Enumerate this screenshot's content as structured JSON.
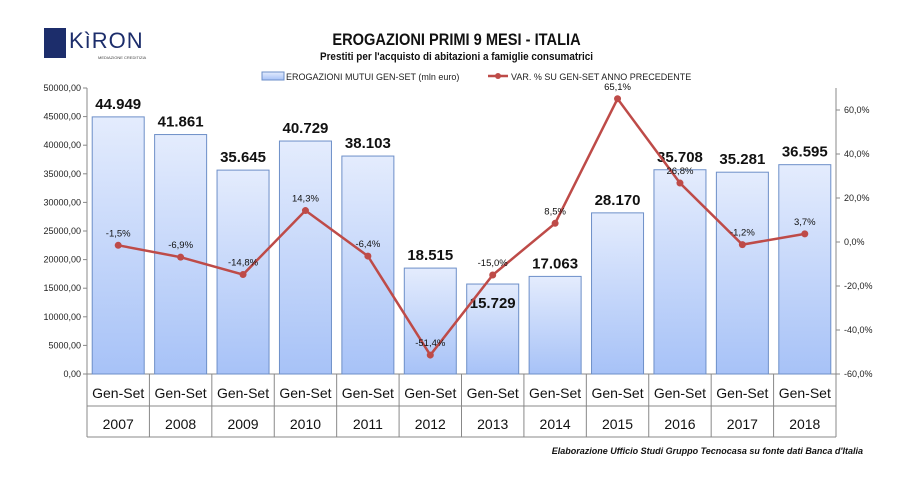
{
  "logo": {
    "text": "KìRON",
    "sub": "MEDIAZIONE CREDITIZIA"
  },
  "chart_data": {
    "type": "bar+line",
    "title": "EROGAZIONI PRIMI 9 MESI - ITALIA",
    "subtitle": "Prestiti per l'acquisto di abitazioni a famiglie consumatrici",
    "categories": [
      "2007",
      "2008",
      "2009",
      "2010",
      "2011",
      "2012",
      "2013",
      "2014",
      "2015",
      "2016",
      "2017",
      "2018"
    ],
    "category_prefix": "Gen-Set",
    "series": [
      {
        "name": "EROGAZIONI MUTUI GEN-SET (mln euro)",
        "type": "bar",
        "axis": "left",
        "color": "#a9c4f5",
        "values": [
          44949,
          41861,
          35645,
          40729,
          38103,
          18515,
          15729,
          17063,
          28170,
          35708,
          35281,
          36595
        ],
        "labels": [
          "44.949",
          "41.861",
          "35.645",
          "40.729",
          "38.103",
          "18.515",
          "15.729",
          "17.063",
          "28.170",
          "35.708",
          "35.281",
          "36.595"
        ]
      },
      {
        "name": "VAR. % SU GEN-SET ANNO PRECEDENTE",
        "type": "line",
        "axis": "right",
        "color": "#be4b48",
        "values": [
          -1.5,
          -6.9,
          -14.8,
          14.3,
          -6.4,
          -51.4,
          -15.0,
          8.5,
          65.1,
          26.8,
          -1.2,
          3.7
        ],
        "labels": [
          "-1,5%",
          "-6,9%",
          "-14,8%",
          "14,3%",
          "-6,4%",
          "-51,4%",
          "-15,0%",
          "8,5%",
          "65,1%",
          "26,8%",
          "-1,2%",
          "3,7%"
        ]
      }
    ],
    "left_axis": {
      "range": [
        0,
        50000
      ],
      "ticks": [
        "0,00",
        "5000,00",
        "10000,00",
        "15000,00",
        "20000,00",
        "25000,00",
        "30000,00",
        "35000,00",
        "40000,00",
        "45000,00",
        "50000,00"
      ]
    },
    "right_axis": {
      "range": [
        -60,
        70
      ],
      "ticks": [
        "-60,0%",
        "-40,0%",
        "-20,0%",
        "0,0%",
        "20,0%",
        "40,0%",
        "60,0%"
      ],
      "tick_values": [
        -60,
        -40,
        -20,
        0,
        20,
        40,
        60
      ]
    },
    "legend": "top-center"
  },
  "footer": "Elaborazione Ufficio Studi Gruppo Tecnocasa su fonte dati Banca d'Italia"
}
